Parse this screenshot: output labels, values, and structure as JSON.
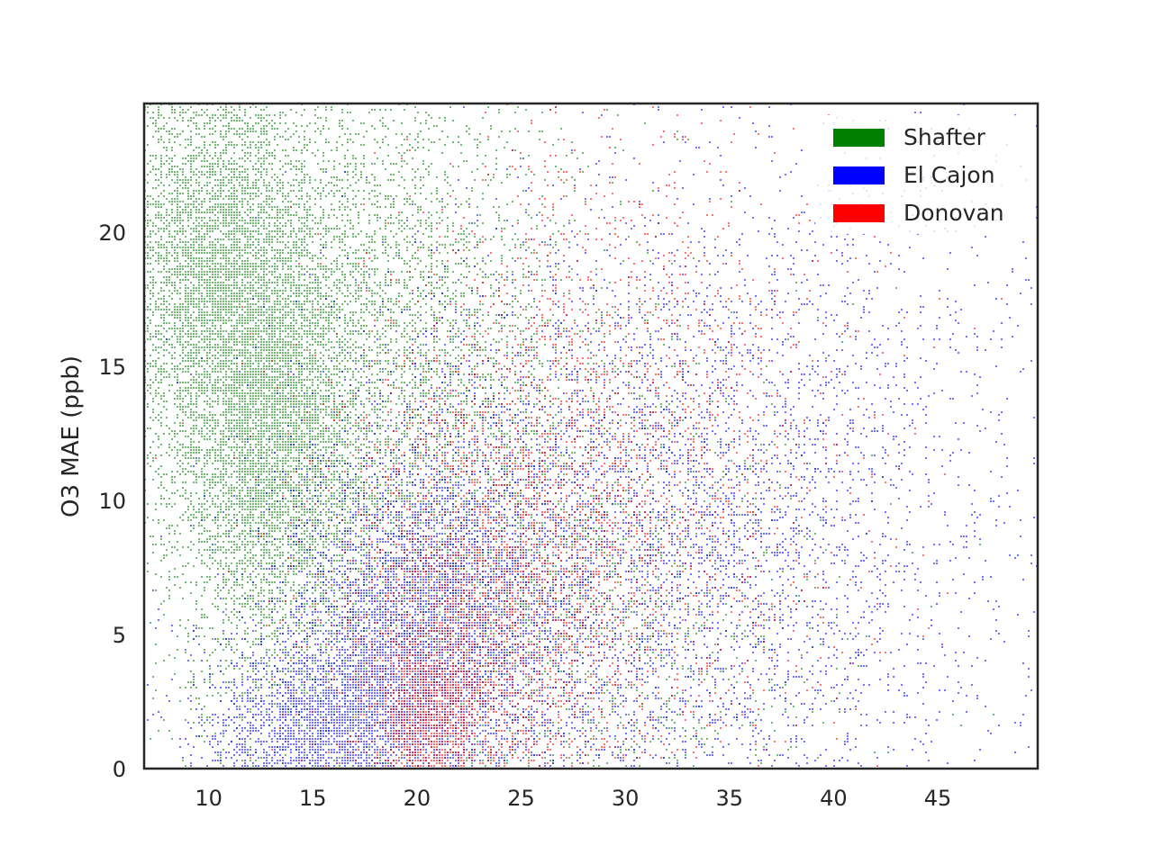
{
  "chart_data": {
    "type": "heatmap",
    "title": "",
    "xlabel": "",
    "ylabel": "O3 MAE (ppb)",
    "xlim": [
      6.9,
      49.8
    ],
    "ylim": [
      0,
      24.8
    ],
    "x_ticks": [
      10,
      15,
      20,
      25,
      30,
      35,
      40,
      45
    ],
    "y_ticks": [
      0,
      5,
      10,
      15,
      20
    ],
    "grid": false,
    "legend_position": "top-right",
    "series": [
      {
        "name": "Shafter",
        "color": "#008000",
        "density_clusters": [
          {
            "x": 10.0,
            "y": 19.0,
            "sx": 3.0,
            "sy": 5.0,
            "w": 1.0
          },
          {
            "x": 13.0,
            "y": 11.0,
            "sx": 2.5,
            "sy": 5.0,
            "w": 0.9
          },
          {
            "x": 18.0,
            "y": 16.0,
            "sx": 5.0,
            "sy": 6.0,
            "w": 0.5
          },
          {
            "x": 27.0,
            "y": 6.0,
            "sx": 6.0,
            "sy": 6.0,
            "w": 0.25
          }
        ]
      },
      {
        "name": "El Cajon",
        "color": "#0000ff",
        "density_clusters": [
          {
            "x": 15.0,
            "y": 1.5,
            "sx": 3.0,
            "sy": 2.0,
            "w": 1.0
          },
          {
            "x": 20.0,
            "y": 5.0,
            "sx": 3.5,
            "sy": 4.0,
            "w": 0.9
          },
          {
            "x": 28.0,
            "y": 8.0,
            "sx": 7.0,
            "sy": 6.0,
            "w": 0.35
          },
          {
            "x": 38.0,
            "y": 10.0,
            "sx": 7.0,
            "sy": 8.0,
            "w": 0.15
          }
        ]
      },
      {
        "name": "Donovan",
        "color": "#ff0000",
        "density_clusters": [
          {
            "x": 20.5,
            "y": 2.0,
            "sx": 1.5,
            "sy": 2.0,
            "w": 1.0
          },
          {
            "x": 23.0,
            "y": 6.0,
            "sx": 4.0,
            "sy": 5.0,
            "w": 0.45
          },
          {
            "x": 29.0,
            "y": 11.0,
            "sx": 6.0,
            "sy": 7.0,
            "w": 0.2
          }
        ]
      }
    ]
  }
}
